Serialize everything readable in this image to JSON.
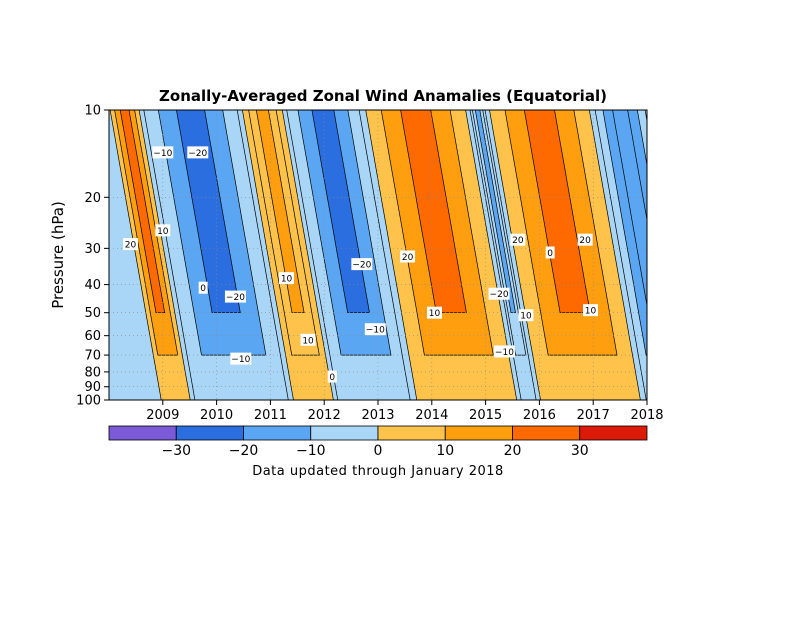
{
  "chart_data": {
    "type": "heatmap",
    "title": "Zonally-Averaged Zonal Wind Anamalies (Equatorial)",
    "ylabel": "Pressure (hPa)",
    "xlabel": "",
    "x_range": [
      "2008.0",
      "2018.0"
    ],
    "x_ticks": [
      "2009",
      "2010",
      "2011",
      "2012",
      "2013",
      "2014",
      "2015",
      "2016",
      "2017",
      "2018"
    ],
    "y_scale": "log",
    "y_range": [
      100,
      10
    ],
    "y_ticks": [
      "10",
      "20",
      "30",
      "40",
      "50",
      "60",
      "70",
      "80",
      "90",
      "100"
    ],
    "grid": true,
    "colorbar": {
      "levels": [
        -30,
        -20,
        -10,
        0,
        10,
        20,
        30
      ],
      "tick_labels": [
        "−30",
        "−20",
        "−10",
        "0",
        "10",
        "20",
        "30"
      ],
      "colors": [
        "#7a5ad6",
        "#2a6ee0",
        "#5aa6f2",
        "#a9d6f7",
        "#ffc24a",
        "#ff9f0f",
        "#ff6a00",
        "#dc1a08"
      ]
    },
    "bands": [
      {
        "start_year": 2008.0,
        "end_year": 2008.58,
        "sign": "westerly",
        "top_peak": 25
      },
      {
        "start_year": 2008.58,
        "end_year": 2010.45,
        "sign": "easterly",
        "top_peak": -22
      },
      {
        "start_year": 2010.45,
        "end_year": 2011.25,
        "sign": "westerly",
        "top_peak": 15
      },
      {
        "start_year": 2011.25,
        "end_year": 2012.7,
        "sign": "easterly",
        "top_peak": -25
      },
      {
        "start_year": 2012.7,
        "end_year": 2014.7,
        "sign": "westerly",
        "top_peak": 25
      },
      {
        "start_year": 2014.7,
        "end_year": 2015.0,
        "sign": "easterly",
        "top_peak": -15
      },
      {
        "start_year": 2015.0,
        "end_year": 2017.0,
        "sign": "westerly",
        "top_peak": 25
      },
      {
        "start_year": 2017.0,
        "end_year": 2018.0,
        "sign": "easterly",
        "top_peak": -20
      }
    ],
    "contour_labels": [
      {
        "text": "−10",
        "year": 2009.0,
        "p": 14
      },
      {
        "text": "−20",
        "year": 2009.65,
        "p": 14
      },
      {
        "text": "20",
        "year": 2008.4,
        "p": 29
      },
      {
        "text": "10",
        "year": 2009.0,
        "p": 26
      },
      {
        "text": "0",
        "year": 2009.75,
        "p": 41
      },
      {
        "text": "−20",
        "year": 2010.35,
        "p": 44
      },
      {
        "text": "−10",
        "year": 2010.45,
        "p": 72
      },
      {
        "text": "10",
        "year": 2011.3,
        "p": 38
      },
      {
        "text": "10",
        "year": 2011.7,
        "p": 62
      },
      {
        "text": "0",
        "year": 2012.15,
        "p": 83
      },
      {
        "text": "−20",
        "year": 2012.7,
        "p": 34
      },
      {
        "text": "−10",
        "year": 2012.95,
        "p": 57
      },
      {
        "text": "20",
        "year": 2013.55,
        "p": 32
      },
      {
        "text": "10",
        "year": 2014.05,
        "p": 50
      },
      {
        "text": "−20",
        "year": 2015.25,
        "p": 43
      },
      {
        "text": "−10",
        "year": 2015.35,
        "p": 68
      },
      {
        "text": "20",
        "year": 2015.6,
        "p": 28
      },
      {
        "text": "10",
        "year": 2015.75,
        "p": 51
      },
      {
        "text": "0",
        "year": 2016.2,
        "p": 31
      },
      {
        "text": "20",
        "year": 2016.85,
        "p": 28
      },
      {
        "text": "10",
        "year": 2016.95,
        "p": 49
      }
    ]
  },
  "footer_note": "Data updated through January 2018"
}
